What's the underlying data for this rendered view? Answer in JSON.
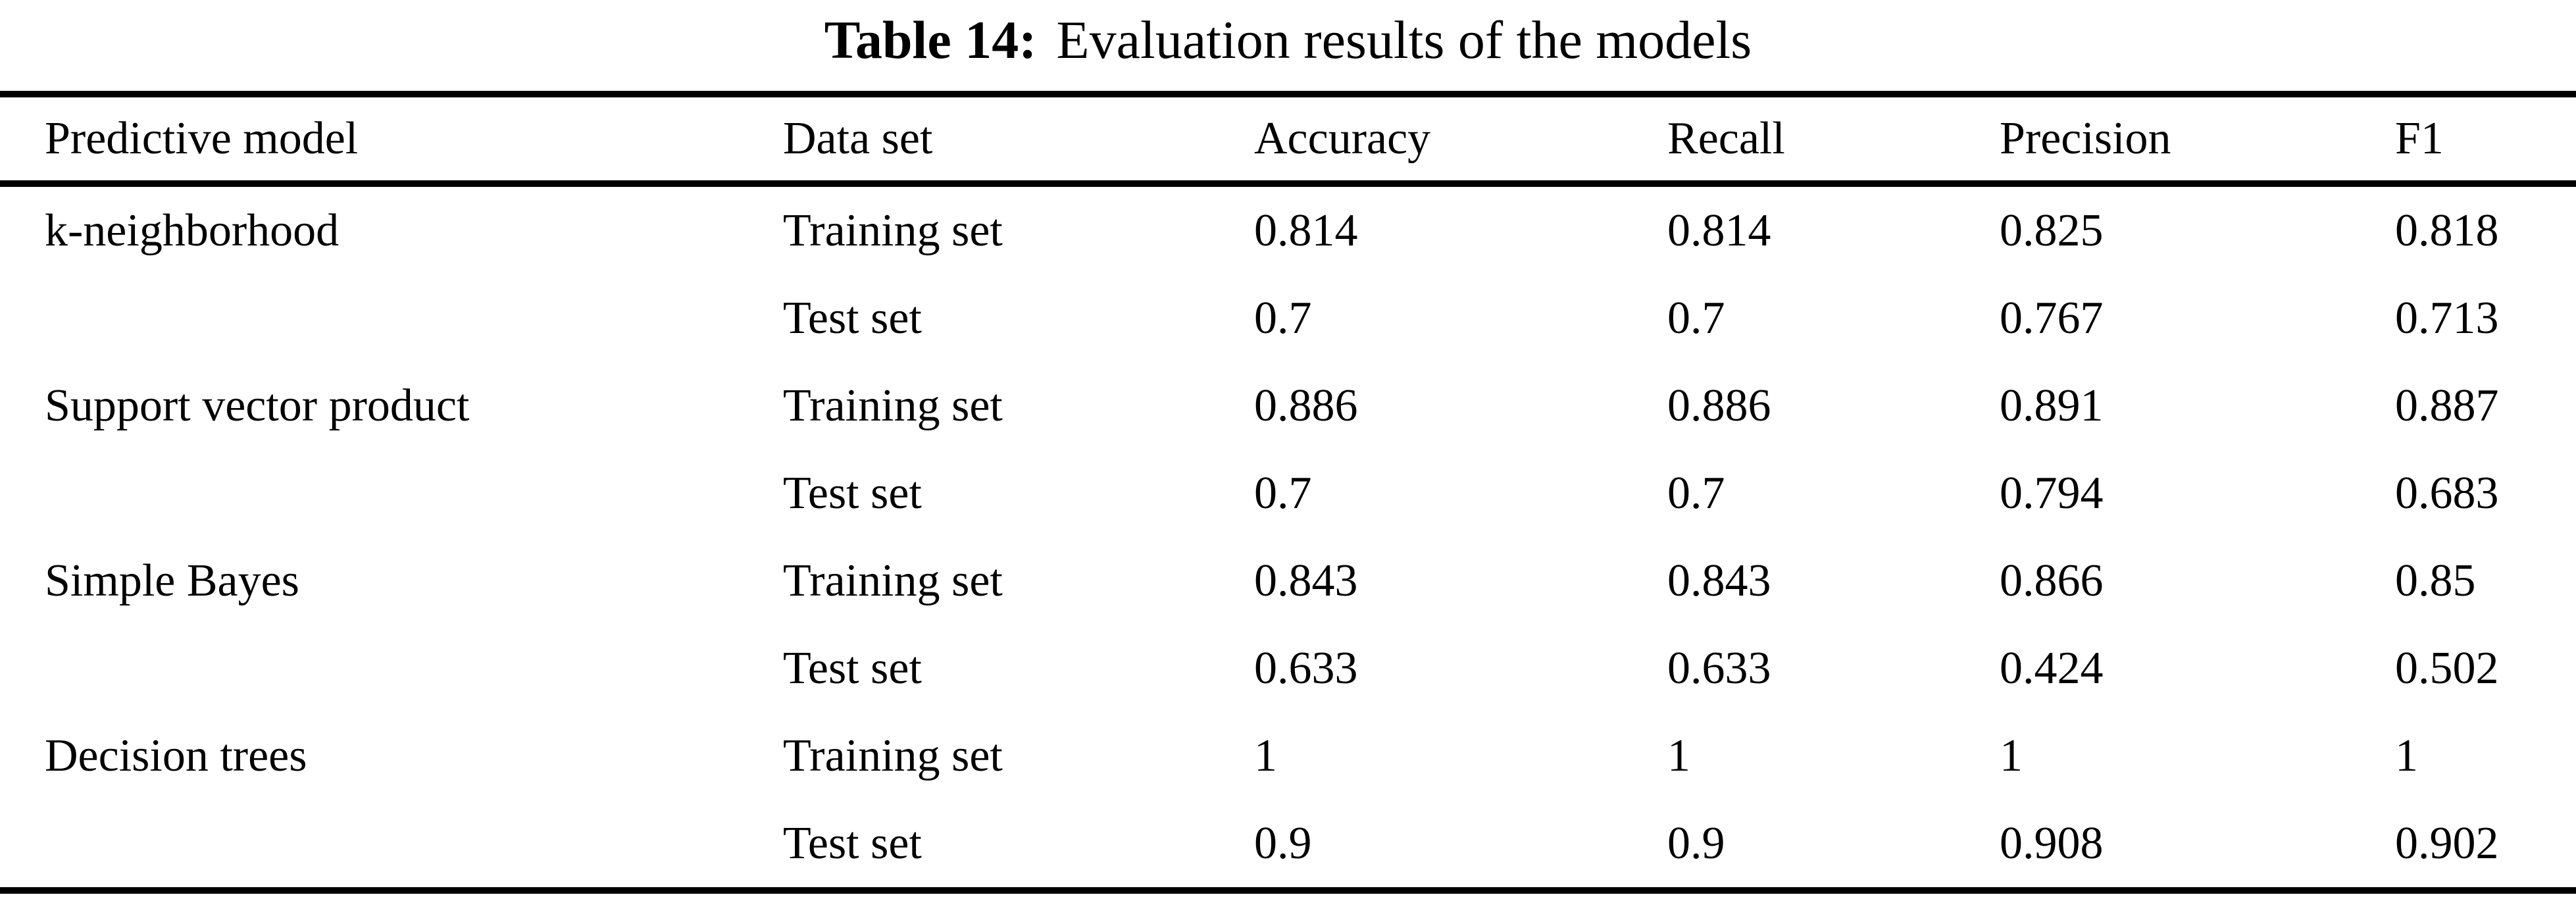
{
  "colors": {
    "background": "#ffffff",
    "text": "#000000",
    "rule": "#000000"
  },
  "title": {
    "label": "Table 14:",
    "text": "Evaluation results of the models"
  },
  "table": {
    "columns": [
      "Predictive model",
      "Data set",
      "Accuracy",
      "Recall",
      "Precision",
      "F1"
    ],
    "rows": [
      {
        "model": "k-neighborhood",
        "dataset": "Training set",
        "accuracy": "0.814",
        "recall": "0.814",
        "precision": "0.825",
        "f1": "0.818"
      },
      {
        "model": "",
        "dataset": "Test set",
        "accuracy": "0.7",
        "recall": "0.7",
        "precision": "0.767",
        "f1": "0.713"
      },
      {
        "model": "Support vector product",
        "dataset": "Training set",
        "accuracy": "0.886",
        "recall": "0.886",
        "precision": "0.891",
        "f1": "0.887"
      },
      {
        "model": "",
        "dataset": "Test set",
        "accuracy": "0.7",
        "recall": "0.7",
        "precision": "0.794",
        "f1": "0.683"
      },
      {
        "model": "Simple Bayes",
        "dataset": "Training set",
        "accuracy": "0.843",
        "recall": "0.843",
        "precision": "0.866",
        "f1": "0.85"
      },
      {
        "model": "",
        "dataset": "Test set",
        "accuracy": "0.633",
        "recall": "0.633",
        "precision": "0.424",
        "f1": "0.502"
      },
      {
        "model": "Decision trees",
        "dataset": "Training set",
        "accuracy": "1",
        "recall": "1",
        "precision": "1",
        "f1": "1"
      },
      {
        "model": "",
        "dataset": "Test set",
        "accuracy": "0.9",
        "recall": "0.9",
        "precision": "0.908",
        "f1": "0.902"
      }
    ]
  }
}
